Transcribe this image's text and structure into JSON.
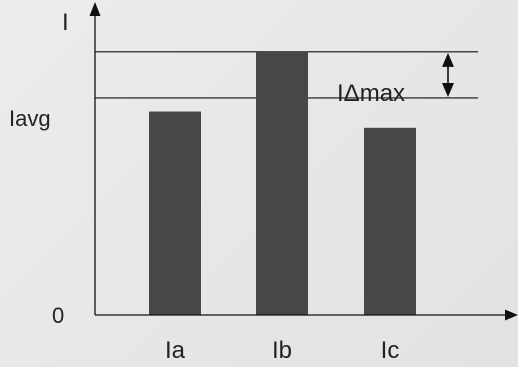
{
  "chart_data": {
    "type": "bar",
    "title": "",
    "xlabel": "",
    "ylabel": "I",
    "categories": [
      "Ia",
      "Ib",
      "Ic"
    ],
    "values": [
      7.5,
      9.7,
      6.9
    ],
    "ylim": [
      0,
      11.5
    ],
    "grid": false,
    "legend": "none",
    "reference_lines": [
      {
        "name": "Iavg",
        "value": 8.0
      },
      {
        "name": "max",
        "value": 9.7
      }
    ],
    "y_tick_labels": [
      "0",
      "Iavg"
    ],
    "annotation": "IΔmax",
    "bar_color": "#474747",
    "axis_color": "#111111"
  }
}
